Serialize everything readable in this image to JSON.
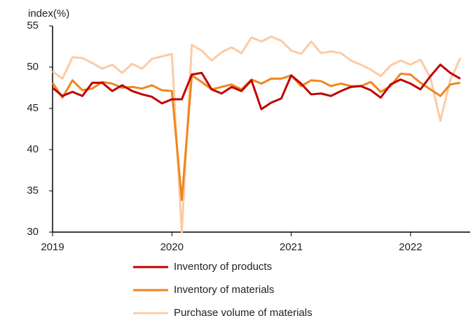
{
  "chart_data": {
    "type": "line",
    "y_label": "index(%)",
    "x": [
      2019,
      2019.083,
      2019.167,
      2019.25,
      2019.333,
      2019.417,
      2019.5,
      2019.583,
      2019.667,
      2019.75,
      2019.833,
      2019.917,
      2020,
      2020.083,
      2020.167,
      2020.25,
      2020.333,
      2020.417,
      2020.5,
      2020.583,
      2020.667,
      2020.75,
      2020.833,
      2020.917,
      2021,
      2021.083,
      2021.167,
      2021.25,
      2021.333,
      2021.417,
      2021.5,
      2021.583,
      2021.667,
      2021.75,
      2021.833,
      2021.917,
      2022,
      2022.083,
      2022.167,
      2022.25,
      2022.333,
      2022.417
    ],
    "series": [
      {
        "name": "Inventory of products",
        "color": "#c00000",
        "values": [
          47.5,
          46.5,
          47.0,
          46.5,
          48.1,
          48.1,
          47.1,
          47.8,
          47.1,
          46.7,
          46.4,
          45.6,
          46.1,
          46.1,
          49.1,
          49.3,
          47.3,
          46.8,
          47.6,
          47.1,
          48.4,
          44.9,
          45.7,
          46.2,
          49.0,
          48.0,
          46.7,
          46.8,
          46.5,
          47.1,
          47.6,
          47.7,
          47.2,
          46.3,
          47.9,
          48.5,
          48.0,
          47.3,
          48.9,
          50.3,
          49.3,
          48.6
        ]
      },
      {
        "name": "Inventory of materials",
        "color": "#f0861e",
        "values": [
          48.1,
          46.3,
          48.4,
          47.2,
          47.4,
          48.2,
          48.0,
          47.5,
          47.6,
          47.4,
          47.8,
          47.2,
          47.1,
          33.9,
          49.0,
          48.2,
          47.3,
          47.6,
          47.9,
          47.3,
          48.5,
          48.0,
          48.6,
          48.6,
          49.0,
          47.7,
          48.4,
          48.3,
          47.7,
          48.0,
          47.7,
          47.7,
          48.2,
          47.0,
          47.7,
          49.2,
          49.1,
          48.1,
          47.3,
          46.5,
          47.9,
          48.1
        ]
      },
      {
        "name": "Purchase volume of materials",
        "color": "#fbcba5",
        "values": [
          49.5,
          48.6,
          51.2,
          51.1,
          50.5,
          49.8,
          50.3,
          49.3,
          50.4,
          49.8,
          51.0,
          51.3,
          51.6,
          30,
          52.7,
          52.0,
          50.8,
          51.8,
          52.4,
          51.7,
          53.6,
          53.1,
          53.7,
          53.2,
          52.0,
          51.6,
          53.1,
          51.7,
          51.9,
          51.7,
          50.8,
          50.3,
          49.7,
          48.9,
          50.2,
          50.8,
          50.3,
          50.9,
          48.7,
          43.5,
          48.4,
          51.1
        ]
      }
    ],
    "xlim": [
      2019,
      2022.5
    ],
    "xticks": [
      2019,
      2020,
      2021,
      2022
    ],
    "ylim": [
      30,
      55
    ],
    "yticks": [
      30,
      35,
      40,
      45,
      50,
      55
    ],
    "grid": false,
    "legend": "bottom"
  }
}
